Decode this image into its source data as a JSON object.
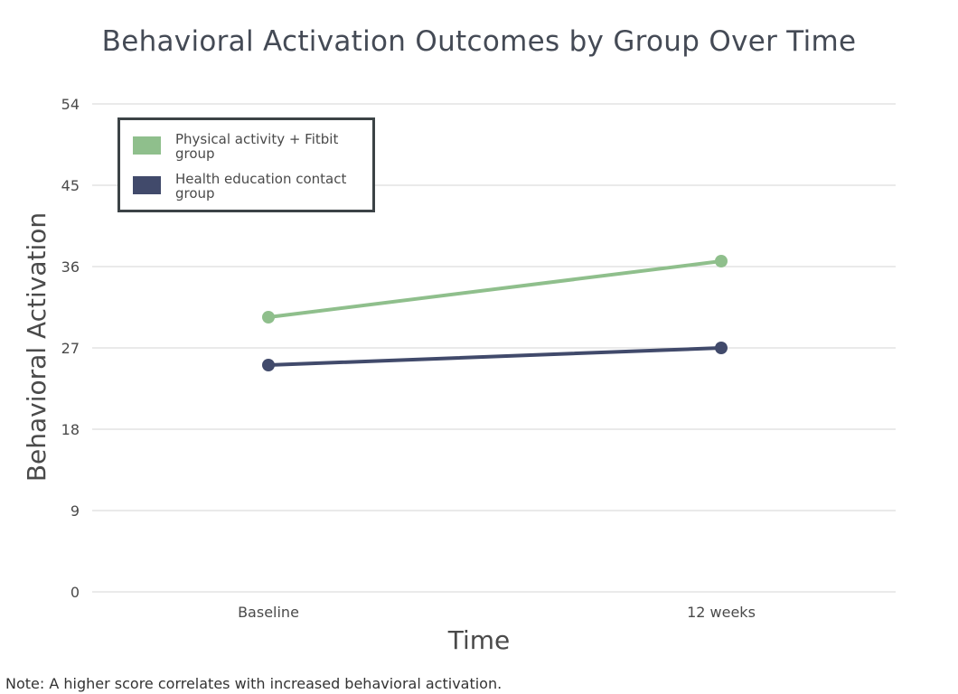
{
  "chart_data": {
    "type": "line",
    "title": "Behavioral Activation Outcomes by Group Over Time",
    "xlabel": "Time",
    "ylabel": "Behavioral Activation",
    "categories": [
      "Baseline",
      "12 weeks"
    ],
    "y_ticks": [
      "0",
      "9",
      "18",
      "27",
      "36",
      "45",
      "54"
    ],
    "ylim": [
      0,
      54
    ],
    "grid": true,
    "legend_position": "top-left",
    "series": [
      {
        "name": "Physical activity + Fitbit group",
        "legend_lines": [
          "Physical activity + Fitbit",
          "group"
        ],
        "values": [
          30.4,
          36.6
        ],
        "color": "#8fbf8c"
      },
      {
        "name": "Health education contact group",
        "legend_lines": [
          "Health education contact",
          "group"
        ],
        "values": [
          25.1,
          27.0
        ],
        "color": "#414a6b"
      }
    ],
    "note": "Note: A higher score correlates with increased behavioral activation."
  }
}
